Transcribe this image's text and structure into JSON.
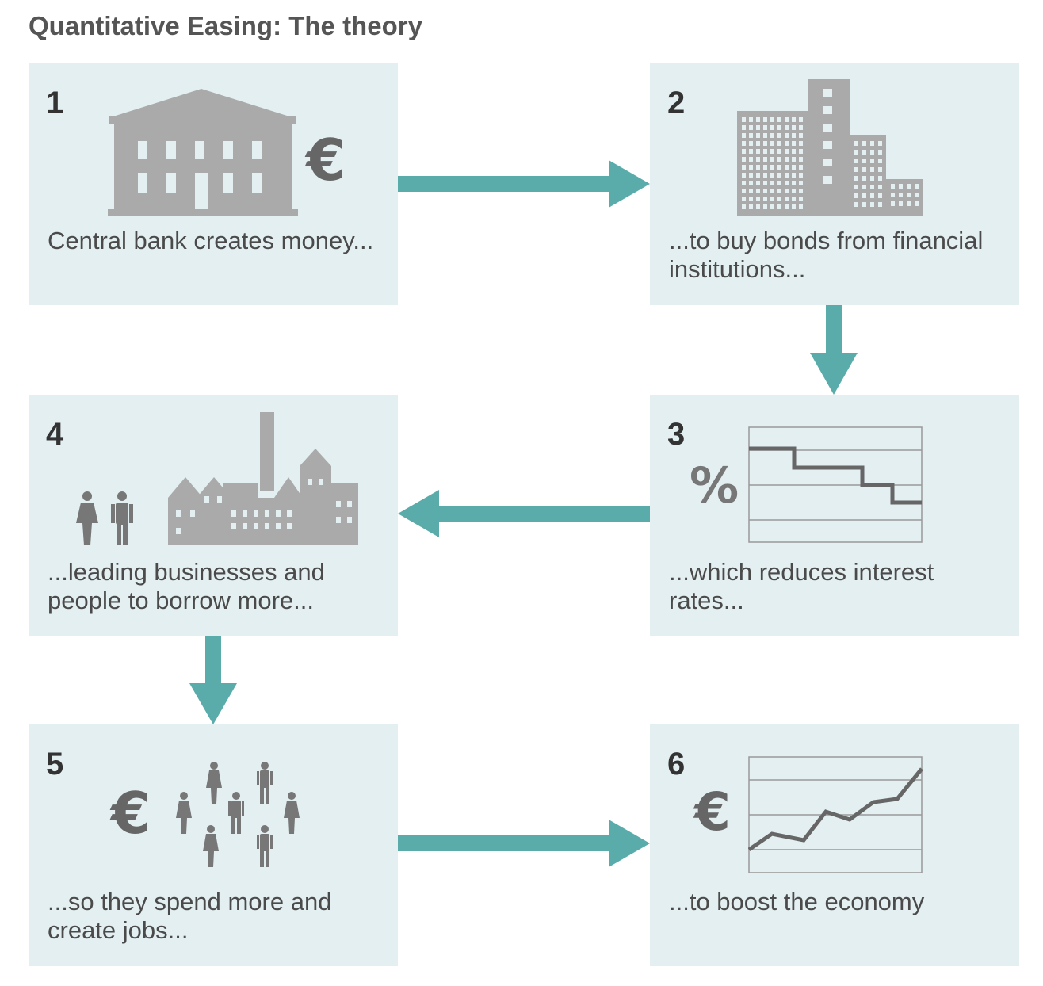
{
  "title": "Quantitative Easing: The theory",
  "colors": {
    "panel_bg": "#e3eff0",
    "arrow": "#5aacab",
    "icon_grey": "#aaaaaa",
    "text": "#4a4a4a"
  },
  "steps": [
    {
      "number": "1",
      "caption": "Central bank creates money...",
      "icon": "central-bank-icon",
      "symbol": "€"
    },
    {
      "number": "2",
      "caption": "...to buy bonds from financial institutions...",
      "icon": "office-buildings-icon"
    },
    {
      "number": "3",
      "caption": "...which reduces interest rates...",
      "icon": "falling-rate-chart-icon",
      "symbol": "%"
    },
    {
      "number": "4",
      "caption": "...leading businesses and people to borrow more...",
      "icon": "factory-and-people-icon"
    },
    {
      "number": "5",
      "caption": "...so they spend more and create jobs...",
      "icon": "crowd-icon",
      "symbol": "€"
    },
    {
      "number": "6",
      "caption": "...to boost the economy",
      "icon": "rising-chart-icon",
      "symbol": "€"
    }
  ],
  "flow": [
    "1→2",
    "2→3",
    "3→4",
    "4→5",
    "5→6"
  ]
}
